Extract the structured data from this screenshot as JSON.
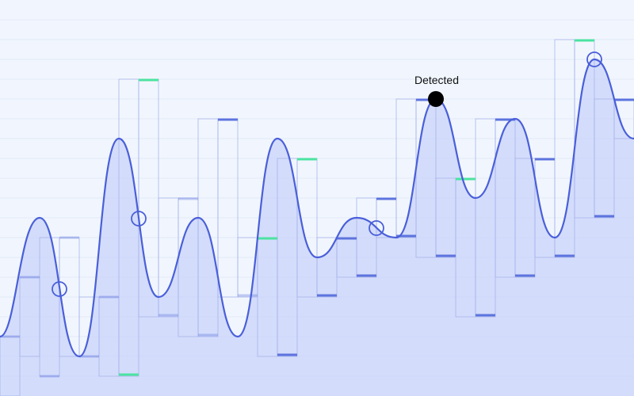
{
  "scene": {
    "colors": {
      "background": "#f1f6fe",
      "curve": "#4a5fd9",
      "fill": "#c8d3fa",
      "column_outline": "#a8b4ec",
      "cap_normal": "#5d74de",
      "cap_highlight": "#4be3a0",
      "marker": "#4a5fd9",
      "detected": "#000000"
    },
    "detected_label": "Detected"
  }
}
